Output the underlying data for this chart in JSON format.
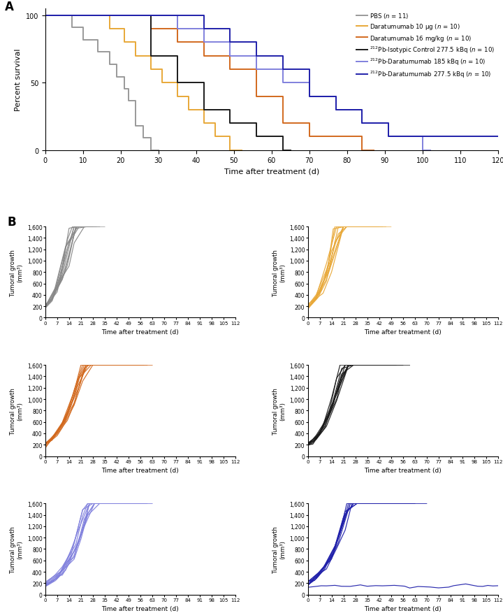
{
  "km_data": [
    {
      "color": "#999999",
      "label": "PBS ($n$ = 11)",
      "step_times": [
        0,
        7,
        7,
        10,
        10,
        14,
        14,
        17,
        17,
        19,
        19,
        21,
        21,
        22,
        22,
        24,
        24,
        26,
        26,
        28,
        28,
        30
      ],
      "step_surv": [
        100,
        100,
        90.9,
        90.9,
        81.8,
        81.8,
        72.7,
        72.7,
        63.6,
        63.6,
        54.5,
        54.5,
        45.5,
        45.5,
        36.4,
        36.4,
        18.2,
        18.2,
        9.1,
        9.1,
        0,
        0
      ]
    },
    {
      "color": "#E8A838",
      "label": "Daratumumab 10 μg ($n$ = 10)",
      "step_times": [
        0,
        17,
        17,
        21,
        21,
        24,
        24,
        28,
        28,
        31,
        31,
        35,
        35,
        38,
        38,
        42,
        42,
        45,
        45,
        49,
        49,
        52
      ],
      "step_surv": [
        100,
        100,
        90,
        90,
        80,
        80,
        70,
        70,
        60,
        60,
        50,
        50,
        40,
        40,
        30,
        30,
        20,
        20,
        10,
        10,
        0,
        0
      ]
    },
    {
      "color": "#D2691E",
      "label": "Daratumumab 16 mg/kg ($n$ = 10)",
      "step_times": [
        0,
        28,
        28,
        35,
        35,
        42,
        42,
        49,
        49,
        56,
        56,
        63,
        63,
        70,
        70,
        84,
        84,
        87
      ],
      "step_surv": [
        100,
        100,
        90,
        90,
        80,
        80,
        70,
        70,
        60,
        60,
        40,
        40,
        20,
        20,
        10,
        10,
        0,
        0
      ]
    },
    {
      "color": "#1a1a1a",
      "label": "$^{212}$Pb-Isotypic Control 277.5 kBq ($n$ = 10)",
      "step_times": [
        0,
        28,
        28,
        35,
        35,
        42,
        42,
        49,
        49,
        56,
        56,
        63,
        63,
        65
      ],
      "step_surv": [
        100,
        100,
        70,
        70,
        50,
        50,
        30,
        30,
        20,
        20,
        10,
        10,
        0,
        0
      ]
    },
    {
      "color": "#8080DD",
      "label": "$^{212}$Pb-Daratumumab 185 kBq ($n$ = 10)",
      "step_times": [
        0,
        35,
        35,
        42,
        42,
        49,
        49,
        56,
        56,
        63,
        63,
        70,
        70,
        77,
        77,
        84,
        84,
        91,
        91,
        100,
        100,
        102
      ],
      "step_surv": [
        100,
        100,
        90,
        90,
        80,
        80,
        70,
        70,
        60,
        60,
        50,
        50,
        40,
        40,
        30,
        30,
        20,
        20,
        10,
        10,
        0,
        0
      ]
    },
    {
      "color": "#2020AA",
      "label": "$^{212}$Pb-Daratumumab 277.5 kBq ($n$ = 10)",
      "step_times": [
        0,
        42,
        42,
        49,
        49,
        56,
        56,
        63,
        63,
        70,
        70,
        77,
        77,
        84,
        84,
        91,
        91,
        100,
        100,
        120
      ],
      "step_surv": [
        100,
        100,
        90,
        90,
        80,
        80,
        70,
        70,
        60,
        60,
        40,
        40,
        30,
        30,
        20,
        20,
        10,
        10,
        10,
        10
      ]
    }
  ],
  "tumor_panels": [
    {
      "color": "#888888",
      "n": 11,
      "seed": 1001,
      "end_days": [
        21,
        22,
        24,
        25,
        26,
        27,
        28,
        28,
        30,
        32,
        35
      ],
      "start_vals": [
        180,
        200,
        170,
        220,
        190,
        210,
        175,
        195,
        185,
        205,
        215
      ],
      "rates": [
        0.14,
        0.12,
        0.16,
        0.13,
        0.15,
        0.11,
        0.17,
        0.14,
        0.13,
        0.15,
        0.12
      ]
    },
    {
      "color": "#E8A838",
      "n": 10,
      "seed": 1002,
      "end_days": [
        28,
        31,
        33,
        35,
        38,
        40,
        42,
        44,
        46,
        49
      ],
      "start_vals": [
        200,
        185,
        210,
        195,
        175,
        220,
        190,
        205,
        180,
        200
      ],
      "rates": [
        0.12,
        0.11,
        0.13,
        0.12,
        0.14,
        0.1,
        0.13,
        0.11,
        0.12,
        0.13
      ]
    },
    {
      "color": "#D2691E",
      "n": 10,
      "seed": 1003,
      "end_days": [
        35,
        38,
        42,
        45,
        49,
        52,
        56,
        58,
        60,
        63
      ],
      "start_vals": [
        220,
        195,
        210,
        230,
        185,
        200,
        215,
        190,
        205,
        225
      ],
      "rates": [
        0.09,
        0.1,
        0.085,
        0.095,
        0.11,
        0.088,
        0.092,
        0.105,
        0.098,
        0.087
      ]
    },
    {
      "color": "#1a1a1a",
      "n": 10,
      "seed": 1004,
      "end_days": [
        28,
        31,
        35,
        38,
        42,
        45,
        49,
        52,
        56,
        60
      ],
      "start_vals": [
        190,
        210,
        200,
        185,
        215,
        195,
        205,
        180,
        220,
        200
      ],
      "rates": [
        0.1,
        0.095,
        0.11,
        0.105,
        0.09,
        0.115,
        0.098,
        0.108,
        0.092,
        0.102
      ]
    },
    {
      "color": "#8080DD",
      "n": 10,
      "seed": 1005,
      "end_days": [
        35,
        42,
        42,
        49,
        49,
        52,
        56,
        58,
        60,
        63
      ],
      "start_vals": [
        150,
        170,
        180,
        160,
        190,
        140,
        175,
        165,
        185,
        155
      ],
      "rates": [
        0.09,
        0.085,
        0.095,
        0.088,
        0.092,
        0.1,
        0.087,
        0.093,
        0.082,
        0.098
      ]
    },
    {
      "color": "#2020AA",
      "n": 10,
      "seed": 1006,
      "end_days": [
        42,
        45,
        49,
        52,
        56,
        58,
        63,
        63,
        70,
        112
      ],
      "start_vals": [
        180,
        200,
        175,
        220,
        195,
        210,
        185,
        205,
        190,
        160
      ],
      "rates": [
        0.085,
        0.09,
        0.092,
        0.08,
        0.095,
        0.088,
        0.093,
        0.087,
        0.09,
        0.0
      ]
    }
  ],
  "surv_xlabel": "Time after treatment (d)",
  "surv_ylabel": "Percent survival",
  "tumor_xlabel": "Time after treatment (d)",
  "tumor_ylabel": "Tumoral growth\n(mm³)",
  "tumor_ytick_labels": [
    "0",
    "200",
    "400",
    "600",
    "800",
    "1,000",
    "1,200",
    "1,400",
    "1,600"
  ],
  "tumor_yticks": [
    0,
    200,
    400,
    600,
    800,
    1000,
    1200,
    1400,
    1600
  ],
  "tumor_xticks": [
    0,
    7,
    14,
    21,
    28,
    35,
    42,
    49,
    56,
    63,
    70,
    77,
    84,
    91,
    98,
    105,
    112
  ]
}
